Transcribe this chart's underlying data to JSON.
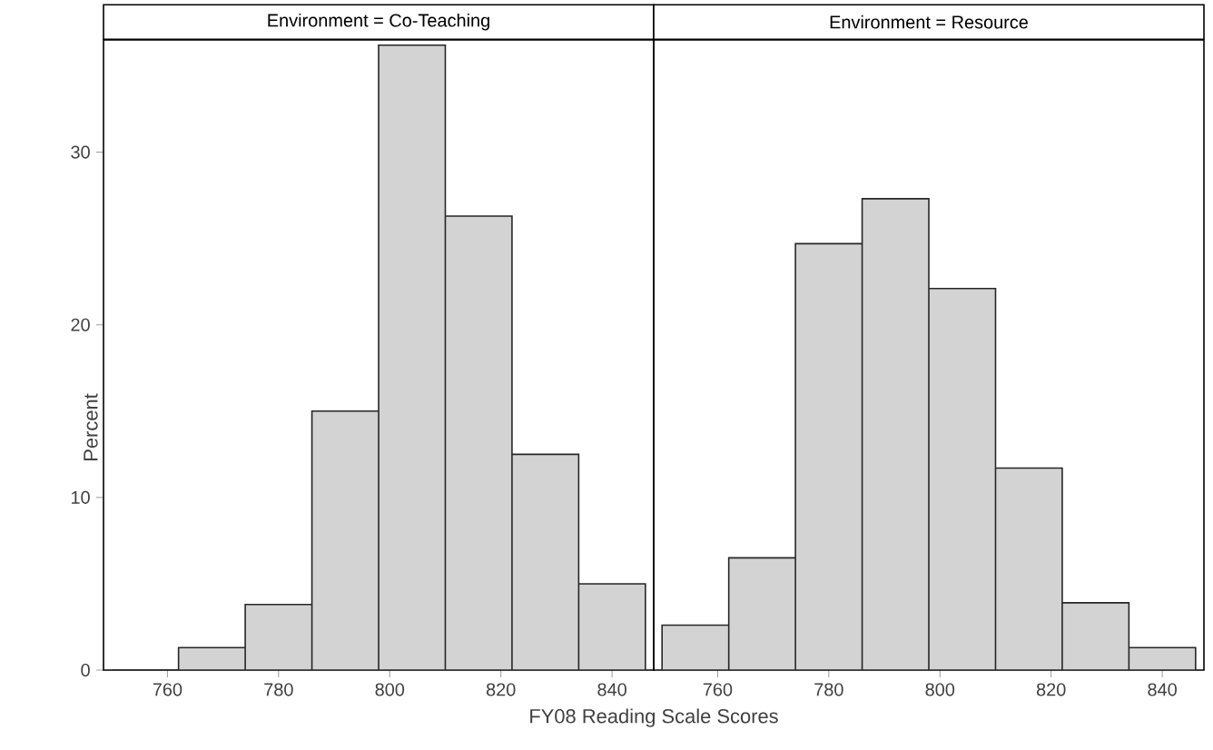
{
  "chart_data": [
    {
      "type": "histogram",
      "title": "Environment = Co-Teaching",
      "xlabel": "FY08 Reading Scale Scores",
      "ylabel": "Percent",
      "color": "#d3d3d3",
      "bins": [
        750,
        762,
        774,
        786,
        798,
        810,
        822,
        834,
        846
      ],
      "values": [
        0,
        1.3,
        3.8,
        15.0,
        36.2,
        26.3,
        12.5,
        5.0
      ],
      "xlim": [
        748.5,
        847.5
      ],
      "ylim": [
        0,
        36.5
      ],
      "xticks": [
        760,
        780,
        800,
        820,
        840
      ],
      "yticks": [
        0,
        10,
        20,
        30
      ]
    },
    {
      "type": "histogram",
      "title": "Environment = Resource",
      "color": "#d3d3d3",
      "bins": [
        750,
        762,
        774,
        786,
        798,
        810,
        822,
        834,
        846
      ],
      "values": [
        2.6,
        6.5,
        24.7,
        27.3,
        22.1,
        11.7,
        3.9,
        1.3
      ],
      "xlim": [
        748.5,
        847.5
      ],
      "ylim": [
        0,
        36.5
      ],
      "xticks": [
        760,
        780,
        800,
        820,
        840
      ],
      "tick_labels": "x"
    }
  ]
}
